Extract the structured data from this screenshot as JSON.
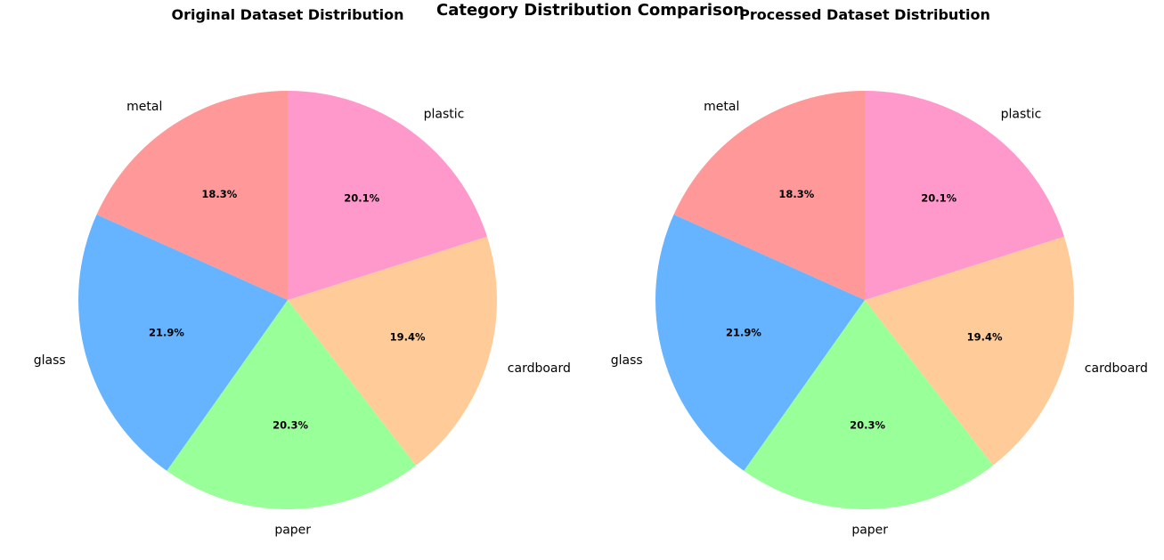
{
  "figure": {
    "suptitle": "Category Distribution Comparison"
  },
  "chart_data": [
    {
      "type": "pie",
      "title": "Original Dataset Distribution",
      "categories": [
        "metal",
        "glass",
        "paper",
        "cardboard",
        "plastic"
      ],
      "values": [
        18.3,
        21.9,
        20.3,
        19.4,
        20.1
      ],
      "labels_pct": [
        "18.3%",
        "21.9%",
        "20.3%",
        "19.4%",
        "20.1%"
      ],
      "colors": [
        "#ff9999",
        "#66b3ff",
        "#99ff99",
        "#ffcc99",
        "#ff99cc"
      ],
      "start_angle_deg": 90,
      "direction": "counterclockwise"
    },
    {
      "type": "pie",
      "title": "Processed Dataset Distribution",
      "categories": [
        "metal",
        "glass",
        "paper",
        "cardboard",
        "plastic"
      ],
      "values": [
        18.3,
        21.9,
        20.3,
        19.4,
        20.1
      ],
      "labels_pct": [
        "18.3%",
        "21.9%",
        "20.3%",
        "19.4%",
        "20.1%"
      ],
      "colors": [
        "#ff9999",
        "#66b3ff",
        "#99ff99",
        "#ffcc99",
        "#ff99cc"
      ],
      "start_angle_deg": 90,
      "direction": "counterclockwise"
    }
  ]
}
